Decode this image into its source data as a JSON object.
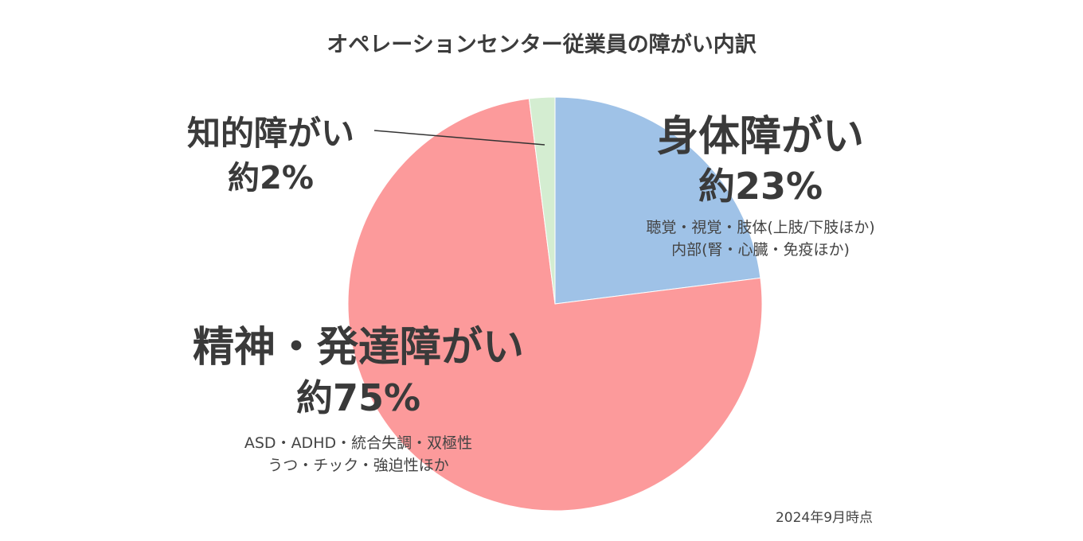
{
  "chart_data": {
    "type": "pie",
    "title": "オペレーションセンター従業員の障がい内訳",
    "start_angle_deg": 0,
    "direction": "clockwise",
    "slices": [
      {
        "name": "身体障がい",
        "percent_label": "約23%",
        "value": 23,
        "color": "#9fc2e7",
        "notes": [
          "聴覚・視覚・肢体(上肢/下肢ほか)",
          "内部(腎・心臓・免疫ほか)"
        ]
      },
      {
        "name": "精神・発達障がい",
        "percent_label": "約75%",
        "value": 75,
        "color": "#fc9a9b",
        "notes": [
          "ASD・ADHD・統合失調・双極性",
          "うつ・チック・強迫性ほか"
        ]
      },
      {
        "name": "知的障がい",
        "percent_label": "約2%",
        "value": 2,
        "color": "#d4edd1",
        "notes": []
      }
    ],
    "footnote": "2024年9月時点"
  }
}
